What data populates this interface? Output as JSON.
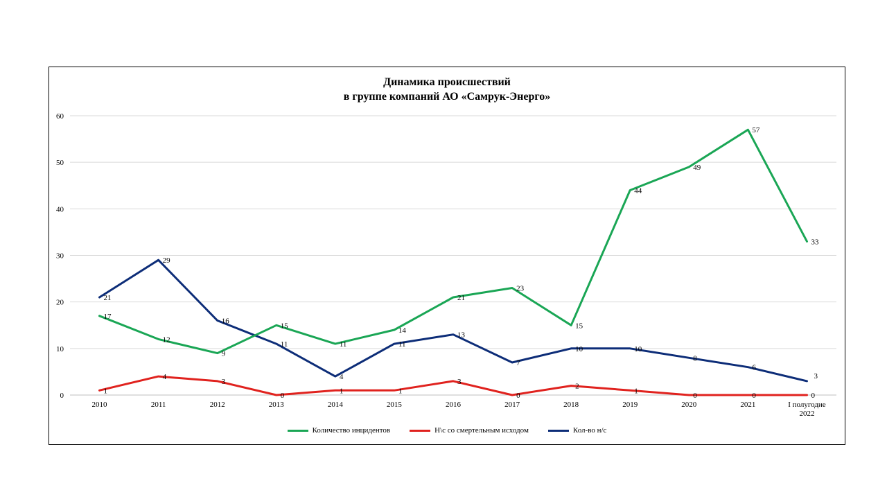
{
  "chart_data": {
    "type": "line",
    "title": "Динамика происшествий",
    "subtitle": "в группе компаний АО «Самрук-Энерго»",
    "categories": [
      "2010",
      "2011",
      "2012",
      "2013",
      "2014",
      "2015",
      "2016",
      "2017",
      "2018",
      "2019",
      "2020",
      "2021",
      "I полугодие 2022"
    ],
    "category_lines": [
      [
        "2010"
      ],
      [
        "2011"
      ],
      [
        "2012"
      ],
      [
        "2013"
      ],
      [
        "2014"
      ],
      [
        "2015"
      ],
      [
        "2016"
      ],
      [
        "2017"
      ],
      [
        "2018"
      ],
      [
        "2019"
      ],
      [
        "2020"
      ],
      [
        "2021"
      ],
      [
        "I полугодие",
        "2022"
      ]
    ],
    "ylim": [
      0,
      60
    ],
    "yticks": [
      0,
      10,
      20,
      30,
      40,
      50,
      60
    ],
    "grid": true,
    "legend_position": "bottom",
    "series": [
      {
        "name": "Количество инцидентов",
        "color": "#1aa655",
        "values": [
          17,
          12,
          9,
          15,
          11,
          14,
          21,
          23,
          15,
          44,
          49,
          57,
          33
        ]
      },
      {
        "name": "Н\\с со смертельным исходом",
        "color": "#e0221e",
        "values": [
          1,
          4,
          3,
          0,
          1,
          1,
          3,
          0,
          2,
          1,
          0,
          0,
          0
        ]
      },
      {
        "name": "Кол-во н/с",
        "color": "#0d2d78",
        "values": [
          21,
          29,
          16,
          11,
          4,
          11,
          13,
          7,
          10,
          10,
          8,
          6,
          3
        ]
      }
    ]
  }
}
